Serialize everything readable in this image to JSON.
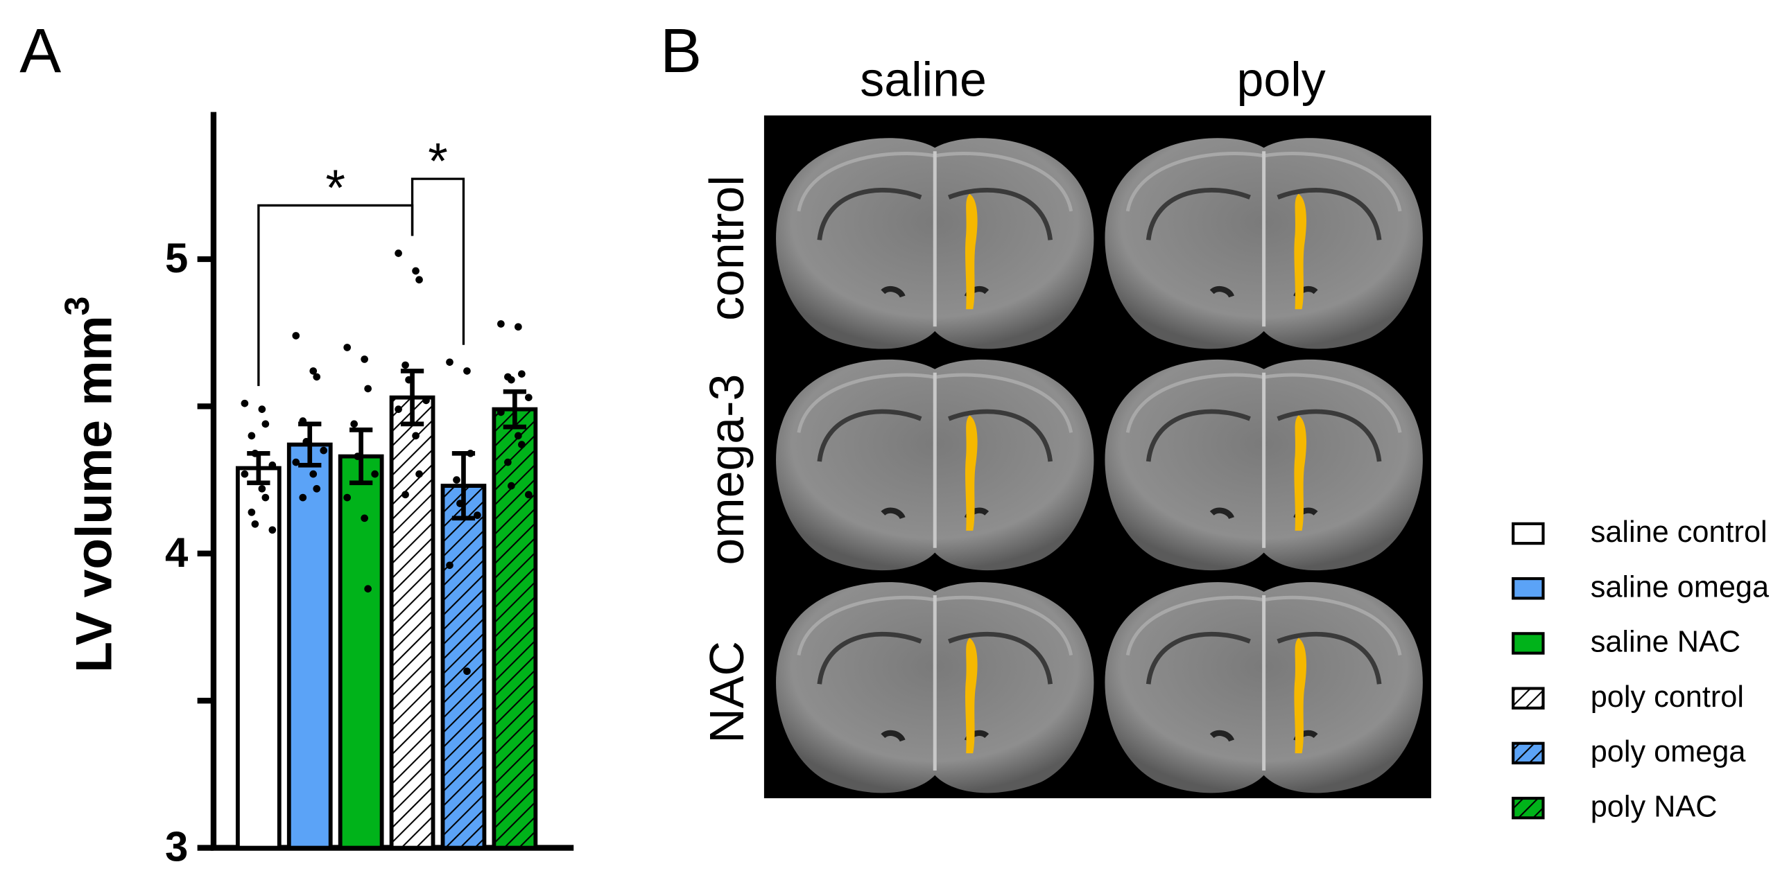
{
  "chart_data": {
    "type": "bar",
    "panel_label": "A",
    "ylabel": {
      "text": "LV volume mm",
      "superscript": "3"
    },
    "categories": [
      "saline control",
      "saline omega",
      "saline NAC",
      "poly control",
      "poly omega",
      "poly NAC"
    ],
    "values": [
      4.29,
      4.37,
      4.33,
      4.53,
      4.23,
      4.49
    ],
    "errors": [
      0.05,
      0.07,
      0.09,
      0.09,
      0.11,
      0.06
    ],
    "colors": [
      "#ffffff",
      "#5ba3f7",
      "#00b31a",
      "#ffffff",
      "#5ba3f7",
      "#00b31a"
    ],
    "hatched": [
      false,
      false,
      false,
      true,
      true,
      true
    ],
    "points": [
      [
        4.51,
        4.49,
        4.44,
        4.4,
        4.34,
        4.3,
        4.27,
        4.22,
        4.19,
        4.14,
        4.1,
        4.08
      ],
      [
        4.74,
        4.62,
        4.6,
        4.45,
        4.38,
        4.35,
        4.31,
        4.27,
        4.22,
        4.19
      ],
      [
        4.7,
        4.66,
        4.56,
        4.44,
        4.33,
        4.27,
        4.19,
        4.12,
        3.88
      ],
      [
        5.02,
        4.96,
        4.93,
        4.64,
        4.59,
        4.52,
        4.49,
        4.4,
        4.27,
        4.2
      ],
      [
        4.65,
        4.62,
        4.34,
        4.25,
        4.17,
        4.13,
        3.96,
        3.6
      ],
      [
        4.78,
        4.77,
        4.61,
        4.6,
        4.59,
        4.53,
        4.48,
        4.4,
        4.37,
        4.31,
        4.23,
        4.2
      ]
    ],
    "significance": [
      {
        "text": "*",
        "from": 0,
        "to": 3
      },
      {
        "text": "*",
        "from": 3,
        "to": 4
      }
    ],
    "ylim": [
      3,
      5.5
    ],
    "yticks": [
      3,
      4,
      5
    ],
    "minor_yticks": [
      3.5,
      4.5
    ]
  },
  "panel_b": {
    "label": "B",
    "columns": [
      "saline",
      "poly"
    ],
    "rows": [
      "control",
      "omega-3",
      "NAC"
    ]
  }
}
